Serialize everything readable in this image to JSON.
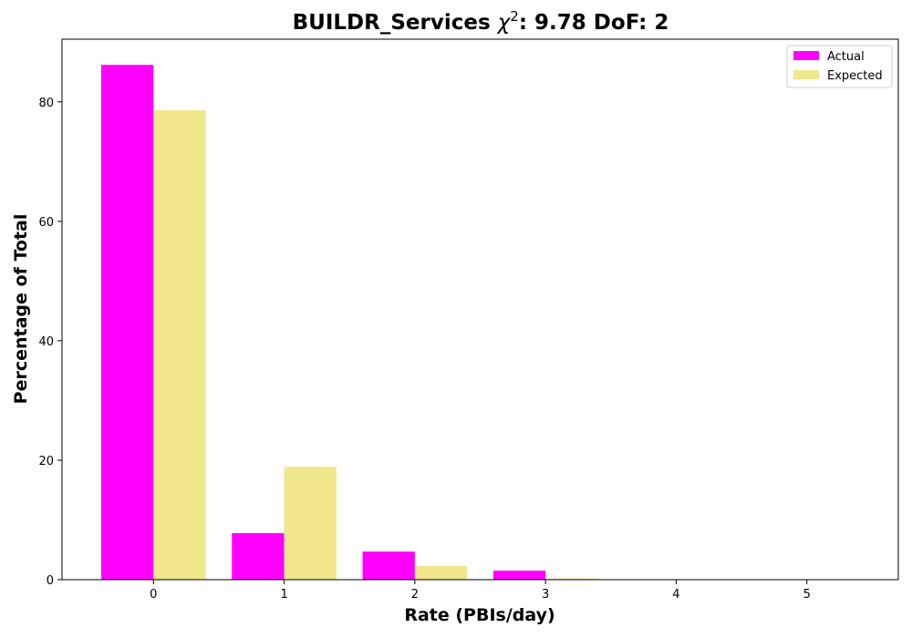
{
  "chart_data": {
    "type": "bar",
    "title_prefix": "BUILDR_Services ",
    "title_symbol": "χ",
    "title_superscript": "2",
    "title_suffix": ": 9.78 DoF: 2",
    "xlabel": "Rate (PBIs/day)",
    "ylabel": "Percentage of Total",
    "categories": [
      "0",
      "1",
      "2",
      "3",
      "4",
      "5"
    ],
    "x": [
      0,
      1,
      2,
      3,
      4,
      5
    ],
    "series": [
      {
        "name": "Actual",
        "color": "#ff00ff",
        "values": [
          86.2,
          7.8,
          4.7,
          1.5,
          0.0,
          0.0
        ]
      },
      {
        "name": "Expected",
        "color": "#f0e68c",
        "values": [
          78.6,
          18.9,
          2.3,
          0.2,
          0.0,
          0.0
        ]
      }
    ],
    "xlim": [
      -0.7,
      5.7
    ],
    "ylim": [
      0,
      90.5
    ],
    "yticks": [
      0,
      20,
      40,
      60,
      80
    ],
    "legend_position": "top-right",
    "grid": false
  }
}
